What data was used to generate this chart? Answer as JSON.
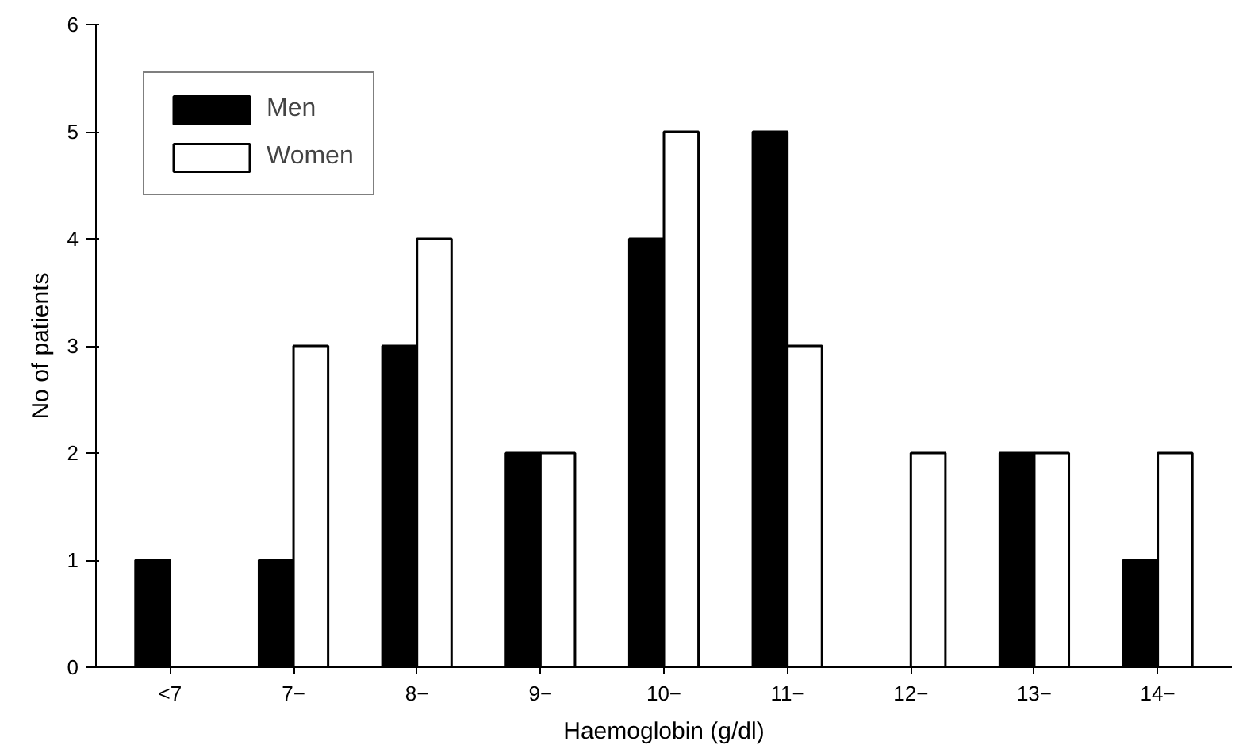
{
  "chart_data": {
    "type": "bar",
    "xlabel": "Haemoglobin (g/dl)",
    "ylabel": "No of patients",
    "categories": [
      "<7",
      "7−",
      "8−",
      "9−",
      "10−",
      "11−",
      "12−",
      "13−",
      "14−"
    ],
    "series": [
      {
        "name": "Men",
        "color": "#000000",
        "values": [
          1,
          1,
          3,
          2,
          4,
          5,
          0,
          2,
          1
        ]
      },
      {
        "name": "Women",
        "color": "#ffffff",
        "values": [
          0,
          3,
          4,
          2,
          5,
          3,
          2,
          2,
          2
        ]
      }
    ],
    "ylim": [
      0,
      6
    ],
    "yticks": [
      0,
      1,
      2,
      3,
      4,
      5,
      6
    ],
    "grid": false,
    "legend": "top left"
  }
}
